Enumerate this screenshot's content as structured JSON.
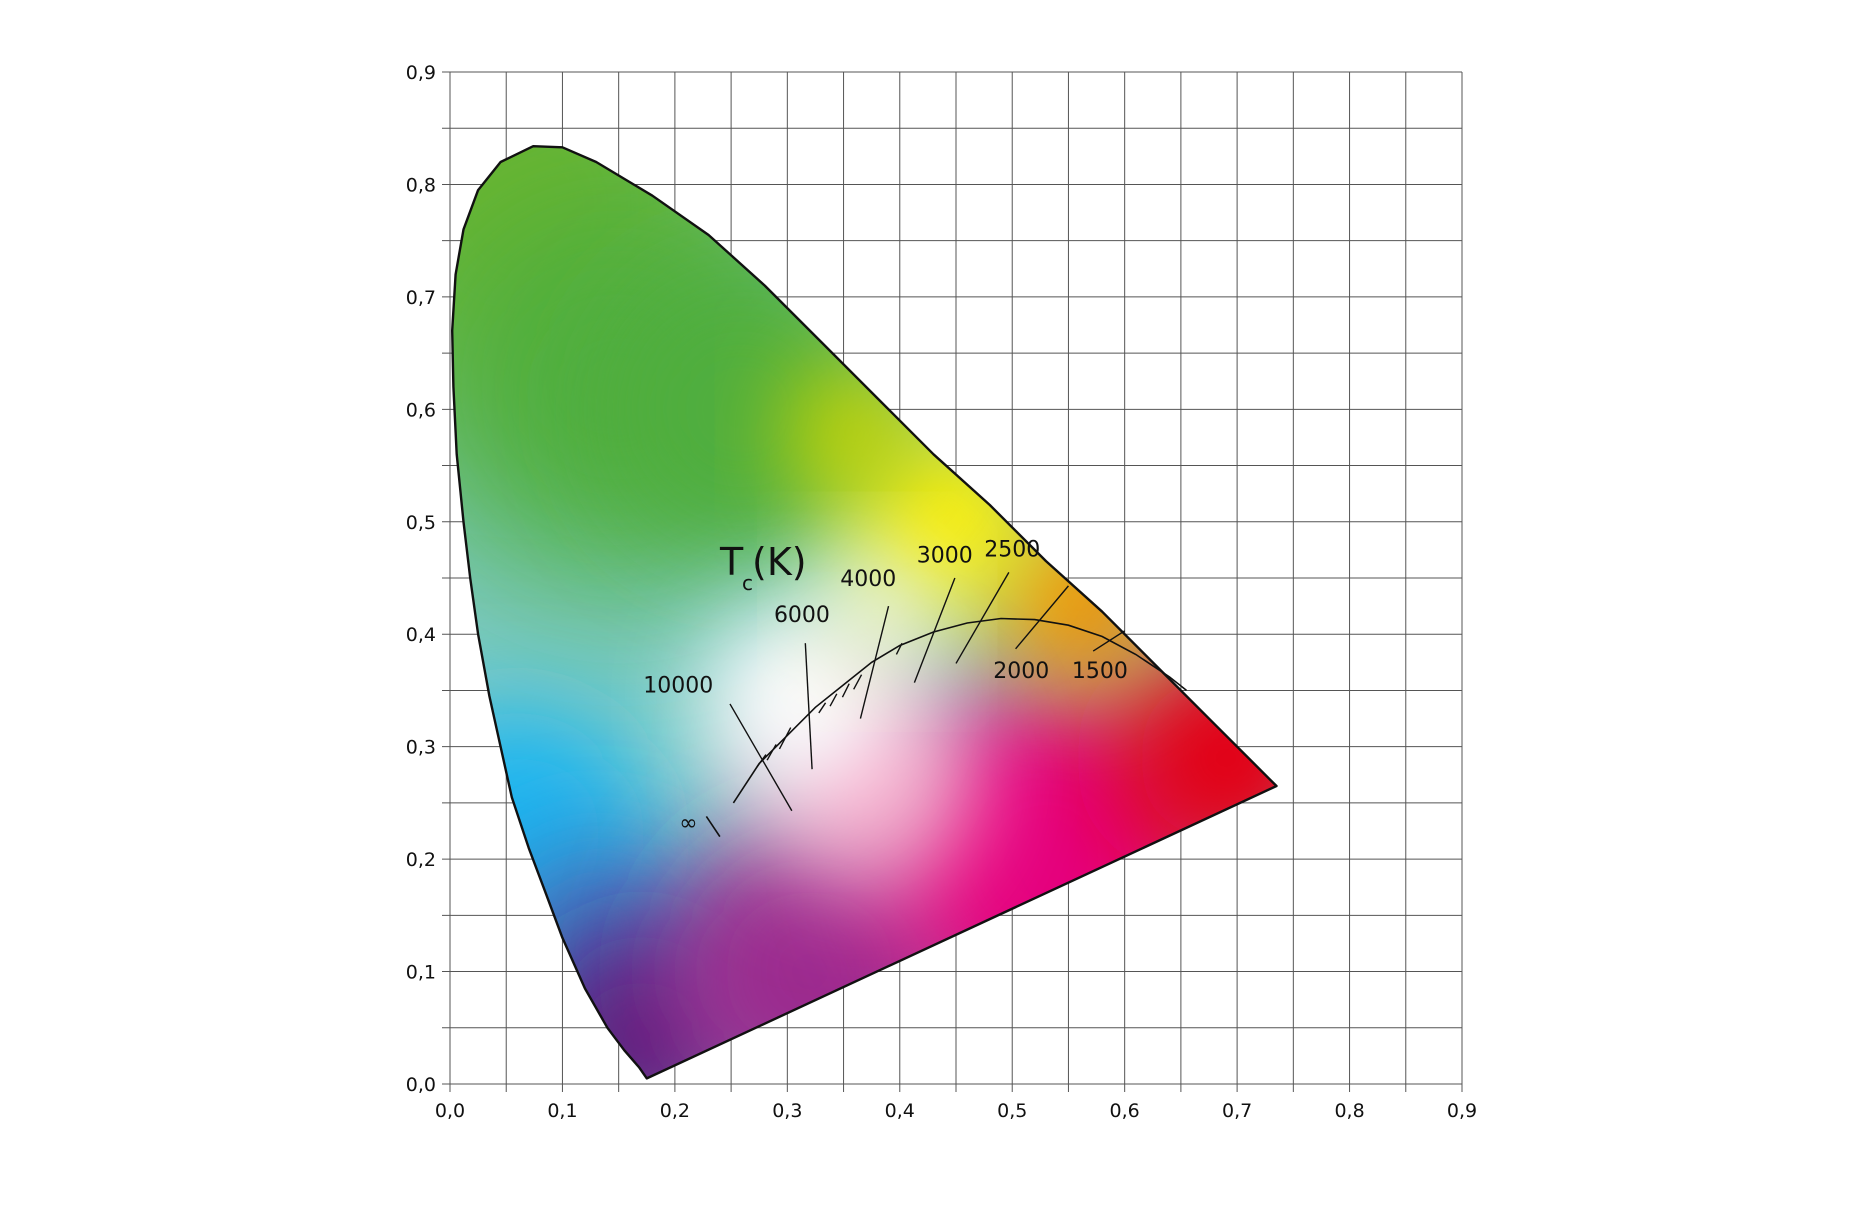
{
  "chart_data": {
    "type": "scatter",
    "title_main": "T",
    "title_sub": "c",
    "title_tail": "(K)",
    "xlim": [
      0.0,
      0.9
    ],
    "ylim": [
      0.0,
      0.9
    ],
    "grid": true,
    "grid_minor_step": 0.05,
    "x_ticks": [
      {
        "value": 0.0,
        "label": "0,0"
      },
      {
        "value": 0.1,
        "label": "0,1"
      },
      {
        "value": 0.2,
        "label": "0,2"
      },
      {
        "value": 0.3,
        "label": "0,3"
      },
      {
        "value": 0.4,
        "label": "0,4"
      },
      {
        "value": 0.5,
        "label": "0,5"
      },
      {
        "value": 0.6,
        "label": "0,6"
      },
      {
        "value": 0.7,
        "label": "0,7"
      },
      {
        "value": 0.8,
        "label": "0,8"
      },
      {
        "value": 0.9,
        "label": "0,9"
      }
    ],
    "y_ticks": [
      {
        "value": 0.0,
        "label": "0,0"
      },
      {
        "value": 0.1,
        "label": "0,1"
      },
      {
        "value": 0.2,
        "label": "0,2"
      },
      {
        "value": 0.3,
        "label": "0,3"
      },
      {
        "value": 0.4,
        "label": "0,4"
      },
      {
        "value": 0.5,
        "label": "0,5"
      },
      {
        "value": 0.6,
        "label": "0,6"
      },
      {
        "value": 0.7,
        "label": "0,7"
      },
      {
        "value": 0.8,
        "label": "0,8"
      },
      {
        "value": 0.9,
        "label": "0,9"
      }
    ],
    "spectral_locus": [
      [
        0.175,
        0.005
      ],
      [
        0.168,
        0.015
      ],
      [
        0.155,
        0.03
      ],
      [
        0.14,
        0.05
      ],
      [
        0.12,
        0.085
      ],
      [
        0.1,
        0.13
      ],
      [
        0.085,
        0.17
      ],
      [
        0.07,
        0.21
      ],
      [
        0.055,
        0.255
      ],
      [
        0.045,
        0.3
      ],
      [
        0.035,
        0.345
      ],
      [
        0.025,
        0.4
      ],
      [
        0.018,
        0.45
      ],
      [
        0.012,
        0.5
      ],
      [
        0.006,
        0.56
      ],
      [
        0.003,
        0.62
      ],
      [
        0.002,
        0.67
      ],
      [
        0.005,
        0.72
      ],
      [
        0.012,
        0.76
      ],
      [
        0.025,
        0.795
      ],
      [
        0.045,
        0.82
      ],
      [
        0.074,
        0.834
      ],
      [
        0.1,
        0.833
      ],
      [
        0.13,
        0.82
      ],
      [
        0.18,
        0.79
      ],
      [
        0.23,
        0.755
      ],
      [
        0.28,
        0.71
      ],
      [
        0.33,
        0.66
      ],
      [
        0.38,
        0.61
      ],
      [
        0.43,
        0.56
      ],
      [
        0.48,
        0.515
      ],
      [
        0.53,
        0.465
      ],
      [
        0.58,
        0.42
      ],
      [
        0.63,
        0.37
      ],
      [
        0.68,
        0.32
      ],
      [
        0.735,
        0.265
      ]
    ],
    "planckian_locus": [
      [
        0.252,
        0.25
      ],
      [
        0.275,
        0.285
      ],
      [
        0.3,
        0.31
      ],
      [
        0.325,
        0.335
      ],
      [
        0.35,
        0.355
      ],
      [
        0.375,
        0.375
      ],
      [
        0.4,
        0.39
      ],
      [
        0.43,
        0.402
      ],
      [
        0.46,
        0.41
      ],
      [
        0.49,
        0.414
      ],
      [
        0.52,
        0.413
      ],
      [
        0.55,
        0.408
      ],
      [
        0.58,
        0.398
      ],
      [
        0.61,
        0.382
      ],
      [
        0.64,
        0.362
      ],
      [
        0.655,
        0.35
      ]
    ],
    "infinity_bar": [
      [
        0.228,
        0.238
      ],
      [
        0.24,
        0.22
      ]
    ],
    "isotherms": [
      {
        "label": "10000",
        "label_at": [
          0.203,
          0.348
        ],
        "from": [
          0.249,
          0.338
        ],
        "to": [
          0.304,
          0.243
        ]
      },
      {
        "label": "6000",
        "label_at": [
          0.313,
          0.411
        ],
        "from": [
          0.316,
          0.392
        ],
        "to": [
          0.322,
          0.28
        ]
      },
      {
        "label": "4000",
        "label_at": [
          0.372,
          0.443
        ],
        "from": [
          0.39,
          0.425
        ],
        "to": [
          0.365,
          0.325
        ]
      },
      {
        "label": "3000",
        "label_at": [
          0.44,
          0.464
        ],
        "from": [
          0.449,
          0.45
        ],
        "to": [
          0.413,
          0.357
        ]
      },
      {
        "label": "2500",
        "label_at": [
          0.5,
          0.469
        ],
        "from": [
          0.497,
          0.455
        ],
        "to": [
          0.45,
          0.374
        ]
      },
      {
        "label": "2000",
        "label_at": [
          0.508,
          0.361
        ],
        "from": [
          0.55,
          0.443
        ],
        "to": [
          0.503,
          0.387
        ]
      },
      {
        "label": "1500",
        "label_at": [
          0.578,
          0.361
        ],
        "from": [
          0.6,
          0.403
        ],
        "to": [
          0.572,
          0.385
        ]
      }
    ],
    "minor_isotherms": [
      {
        "from": [
          0.281,
          0.293
        ],
        "to": [
          0.273,
          0.282
        ]
      },
      {
        "from": [
          0.29,
          0.302
        ],
        "to": [
          0.282,
          0.288
        ]
      },
      {
        "from": [
          0.303,
          0.317
        ],
        "to": [
          0.293,
          0.298
        ]
      },
      {
        "from": [
          0.334,
          0.339
        ],
        "to": [
          0.328,
          0.33
        ]
      },
      {
        "from": [
          0.344,
          0.347
        ],
        "to": [
          0.338,
          0.336
        ]
      },
      {
        "from": [
          0.355,
          0.356
        ],
        "to": [
          0.349,
          0.344
        ]
      },
      {
        "from": [
          0.366,
          0.364
        ],
        "to": [
          0.359,
          0.351
        ]
      },
      {
        "from": [
          0.402,
          0.392
        ],
        "to": [
          0.397,
          0.382
        ]
      }
    ],
    "colors": {
      "outline": "#111111",
      "grid": "#555555",
      "white_point": "#ffffff",
      "green": "#4fae3c",
      "green_top": "#6ab62e",
      "yellow": "#fff000",
      "orange": "#f39200",
      "red": "#e30613",
      "magenta": "#e5007e",
      "purple": "#5b1a7e",
      "blue": "#1fb6f1",
      "cyan": "#7ecbc8"
    }
  }
}
